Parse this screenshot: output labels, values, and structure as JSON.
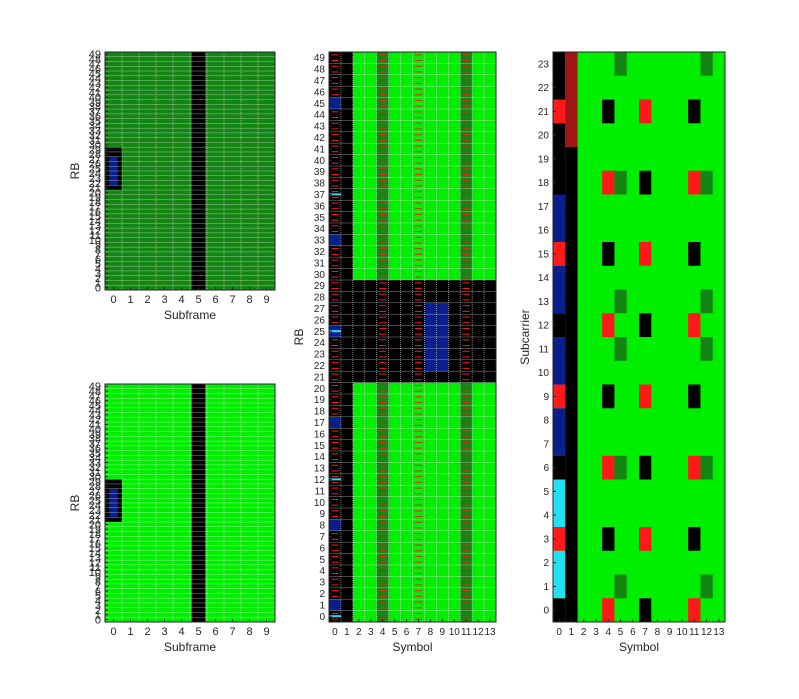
{
  "figure": {
    "background": "#ffffff"
  },
  "palette": {
    "green": "#00ee00",
    "dark_green": "#138513",
    "black": "#000000",
    "red": "#ff1a1a",
    "dark_red": "#a01515",
    "blue": "#0b1f8c",
    "cyan": "#22e0f2",
    "grid": "#ffffff",
    "text": "#262626"
  },
  "chart_data": [
    {
      "id": "subframe-map-1",
      "type": "heatmap",
      "xlabel": "Subframe",
      "ylabel": "RB",
      "x_ticks": [
        "0",
        "1",
        "2",
        "3",
        "4",
        "5",
        "6",
        "7",
        "8",
        "9"
      ],
      "y_ticks": [
        "0",
        "1",
        "2",
        "3",
        "4",
        "5",
        "6",
        "7",
        "8",
        "9",
        "10",
        "11",
        "12",
        "13",
        "14",
        "15",
        "16",
        "17",
        "18",
        "19",
        "20",
        "21",
        "22",
        "23",
        "24",
        "25",
        "26",
        "27",
        "28",
        "29",
        "30",
        "31",
        "32",
        "33",
        "34",
        "35",
        "36",
        "37",
        "38",
        "39",
        "40",
        "41",
        "42",
        "43",
        "44",
        "45",
        "46",
        "47",
        "48",
        "49"
      ],
      "xlim": [
        -0.5,
        9.5
      ],
      "ylim": [
        -0.5,
        49.5
      ],
      "grid": true,
      "base_fill": "dark_green",
      "regions": [
        {
          "x": [
            4.6,
            5.4
          ],
          "y": [
            -0.5,
            49.5
          ],
          "fill": "black"
        },
        {
          "x": [
            -0.5,
            0.5
          ],
          "y": [
            20.5,
            29.5
          ],
          "fill": "black"
        },
        {
          "x": [
            -0.25,
            0.25
          ],
          "y": [
            21.5,
            27.5
          ],
          "fill": "blue"
        }
      ]
    },
    {
      "id": "subframe-map-2",
      "type": "heatmap",
      "xlabel": "Subframe",
      "ylabel": "RB",
      "x_ticks": [
        "0",
        "1",
        "2",
        "3",
        "4",
        "5",
        "6",
        "7",
        "8",
        "9"
      ],
      "y_ticks": [
        "0",
        "1",
        "2",
        "3",
        "4",
        "5",
        "6",
        "7",
        "8",
        "9",
        "10",
        "11",
        "12",
        "13",
        "14",
        "15",
        "16",
        "17",
        "18",
        "19",
        "20",
        "21",
        "22",
        "23",
        "24",
        "25",
        "26",
        "27",
        "28",
        "29",
        "30",
        "31",
        "32",
        "33",
        "34",
        "35",
        "36",
        "37",
        "38",
        "39",
        "40",
        "41",
        "42",
        "43",
        "44",
        "45",
        "46",
        "47",
        "48",
        "49"
      ],
      "xlim": [
        -0.5,
        9.5
      ],
      "ylim": [
        -0.5,
        49.5
      ],
      "grid": true,
      "base_fill": "green",
      "regions": [
        {
          "x": [
            4.6,
            5.4
          ],
          "y": [
            -0.5,
            49.5
          ],
          "fill": "black"
        },
        {
          "x": [
            -0.5,
            0.5
          ],
          "y": [
            20.5,
            29.5
          ],
          "fill": "black"
        },
        {
          "x": [
            -0.25,
            0.25
          ],
          "y": [
            21.5,
            27.5
          ],
          "fill": "blue"
        }
      ]
    },
    {
      "id": "rb-symbol-map",
      "type": "heatmap",
      "xlabel": "Symbol",
      "ylabel": "RB",
      "x_ticks": [
        "0",
        "1",
        "2",
        "3",
        "4",
        "5",
        "6",
        "7",
        "8",
        "9",
        "10",
        "11",
        "12",
        "13"
      ],
      "y_ticks": [
        "0",
        "1",
        "2",
        "3",
        "4",
        "5",
        "6",
        "7",
        "8",
        "9",
        "10",
        "11",
        "12",
        "13",
        "14",
        "15",
        "16",
        "17",
        "18",
        "19",
        "20",
        "21",
        "22",
        "23",
        "24",
        "25",
        "26",
        "27",
        "28",
        "29",
        "30",
        "31",
        "32",
        "33",
        "34",
        "35",
        "36",
        "37",
        "38",
        "39",
        "40",
        "41",
        "42",
        "43",
        "44",
        "45",
        "46",
        "47",
        "48",
        "49"
      ],
      "xlim": [
        -0.5,
        13.5
      ],
      "ylim": [
        -0.5,
        49.5
      ],
      "grid": true,
      "base_fill": "green",
      "regions": [
        {
          "x": [
            -0.5,
            1.5
          ],
          "y": [
            -0.5,
            49.5
          ],
          "fill": "black"
        },
        {
          "x": [
            -0.5,
            13.5
          ],
          "y": [
            20.5,
            29.5
          ],
          "fill": "black"
        },
        {
          "x": [
            7.5,
            9.5
          ],
          "y": [
            21.5,
            27.5
          ],
          "fill": "blue"
        },
        {
          "x": [
            3.5,
            4.5
          ],
          "y": [
            -0.5,
            20.5
          ],
          "fill": "dark_green"
        },
        {
          "x": [
            3.5,
            4.5
          ],
          "y": [
            29.5,
            49.5
          ],
          "fill": "dark_green"
        },
        {
          "x": [
            10.5,
            11.5
          ],
          "y": [
            -0.5,
            20.5
          ],
          "fill": "dark_green"
        },
        {
          "x": [
            10.5,
            11.5
          ],
          "y": [
            29.5,
            49.5
          ],
          "fill": "dark_green"
        }
      ],
      "hatched_columns": [
        0,
        4,
        7,
        11
      ],
      "blue_rows_col0": [
        1,
        8,
        17,
        25,
        33,
        45
      ],
      "cyan_rows_col0": [
        0,
        12,
        25,
        37
      ]
    },
    {
      "id": "subcarrier-symbol-map",
      "type": "heatmap",
      "xlabel": "Symbol",
      "ylabel": "Subcarrier",
      "x_ticks": [
        "0",
        "1",
        "2",
        "3",
        "4",
        "5",
        "6",
        "7",
        "8",
        "9",
        "10",
        "11",
        "12",
        "13"
      ],
      "y_ticks": [
        "0",
        "1",
        "2",
        "3",
        "4",
        "5",
        "6",
        "7",
        "8",
        "9",
        "10",
        "11",
        "12",
        "13",
        "14",
        "15",
        "16",
        "17",
        "18",
        "19",
        "20",
        "21",
        "22",
        "23"
      ],
      "xlim": [
        -0.5,
        13.5
      ],
      "ylim": [
        0,
        24
      ],
      "grid": false,
      "base_fill": "green",
      "cells": [
        {
          "x": 0,
          "y0": 0,
          "y1": 1,
          "fill": "black"
        },
        {
          "x": 0,
          "y0": 1,
          "y1": 3,
          "fill": "cyan"
        },
        {
          "x": 0,
          "y0": 3,
          "y1": 4,
          "fill": "red"
        },
        {
          "x": 0,
          "y0": 4,
          "y1": 6,
          "fill": "cyan"
        },
        {
          "x": 0,
          "y0": 6,
          "y1": 7,
          "fill": "black"
        },
        {
          "x": 0,
          "y0": 7,
          "y1": 9,
          "fill": "blue"
        },
        {
          "x": 0,
          "y0": 9,
          "y1": 10,
          "fill": "red"
        },
        {
          "x": 0,
          "y0": 10,
          "y1": 12,
          "fill": "blue"
        },
        {
          "x": 0,
          "y0": 12,
          "y1": 13,
          "fill": "black"
        },
        {
          "x": 0,
          "y0": 13,
          "y1": 15,
          "fill": "blue"
        },
        {
          "x": 0,
          "y0": 15,
          "y1": 16,
          "fill": "red"
        },
        {
          "x": 0,
          "y0": 16,
          "y1": 18,
          "fill": "blue"
        },
        {
          "x": 0,
          "y0": 18,
          "y1": 21,
          "fill": "black"
        },
        {
          "x": 0,
          "y0": 21,
          "y1": 22,
          "fill": "red"
        },
        {
          "x": 0,
          "y0": 22,
          "y1": 24,
          "fill": "black"
        },
        {
          "x": 1,
          "y0": 0,
          "y1": 20,
          "fill": "black"
        },
        {
          "x": 1,
          "y0": 20,
          "y1": 24,
          "fill": "dark_red"
        },
        {
          "x": 4,
          "y0": 0,
          "y1": 1,
          "fill": "red"
        },
        {
          "x": 7,
          "y0": 0,
          "y1": 1,
          "fill": "black"
        },
        {
          "x": 11,
          "y0": 0,
          "y1": 1,
          "fill": "red"
        },
        {
          "x": 5,
          "y0": 1,
          "y1": 2,
          "fill": "dark_green"
        },
        {
          "x": 12,
          "y0": 1,
          "y1": 2,
          "fill": "dark_green"
        },
        {
          "x": 4,
          "y0": 3,
          "y1": 4,
          "fill": "black"
        },
        {
          "x": 7,
          "y0": 3,
          "y1": 4,
          "fill": "red"
        },
        {
          "x": 11,
          "y0": 3,
          "y1": 4,
          "fill": "black"
        },
        {
          "x": 4,
          "y0": 6,
          "y1": 7,
          "fill": "red"
        },
        {
          "x": 5,
          "y0": 6,
          "y1": 7,
          "fill": "dark_green"
        },
        {
          "x": 7,
          "y0": 6,
          "y1": 7,
          "fill": "black"
        },
        {
          "x": 11,
          "y0": 6,
          "y1": 7,
          "fill": "red"
        },
        {
          "x": 12,
          "y0": 6,
          "y1": 7,
          "fill": "dark_green"
        },
        {
          "x": 4,
          "y0": 9,
          "y1": 10,
          "fill": "black"
        },
        {
          "x": 7,
          "y0": 9,
          "y1": 10,
          "fill": "red"
        },
        {
          "x": 11,
          "y0": 9,
          "y1": 10,
          "fill": "black"
        },
        {
          "x": 5,
          "y0": 11,
          "y1": 12,
          "fill": "dark_green"
        },
        {
          "x": 12,
          "y0": 11,
          "y1": 12,
          "fill": "dark_green"
        },
        {
          "x": 4,
          "y0": 12,
          "y1": 13,
          "fill": "red"
        },
        {
          "x": 7,
          "y0": 12,
          "y1": 13,
          "fill": "black"
        },
        {
          "x": 11,
          "y0": 12,
          "y1": 13,
          "fill": "red"
        },
        {
          "x": 5,
          "y0": 13,
          "y1": 14,
          "fill": "dark_green"
        },
        {
          "x": 12,
          "y0": 13,
          "y1": 14,
          "fill": "dark_green"
        },
        {
          "x": 4,
          "y0": 15,
          "y1": 16,
          "fill": "black"
        },
        {
          "x": 7,
          "y0": 15,
          "y1": 16,
          "fill": "red"
        },
        {
          "x": 11,
          "y0": 15,
          "y1": 16,
          "fill": "black"
        },
        {
          "x": 4,
          "y0": 18,
          "y1": 19,
          "fill": "red"
        },
        {
          "x": 5,
          "y0": 18,
          "y1": 19,
          "fill": "dark_green"
        },
        {
          "x": 7,
          "y0": 18,
          "y1": 19,
          "fill": "black"
        },
        {
          "x": 11,
          "y0": 18,
          "y1": 19,
          "fill": "red"
        },
        {
          "x": 12,
          "y0": 18,
          "y1": 19,
          "fill": "dark_green"
        },
        {
          "x": 4,
          "y0": 21,
          "y1": 22,
          "fill": "black"
        },
        {
          "x": 7,
          "y0": 21,
          "y1": 22,
          "fill": "red"
        },
        {
          "x": 11,
          "y0": 21,
          "y1": 22,
          "fill": "black"
        },
        {
          "x": 5,
          "y0": 23,
          "y1": 24,
          "fill": "dark_green"
        },
        {
          "x": 12,
          "y0": 23,
          "y1": 24,
          "fill": "dark_green"
        }
      ],
      "ytick_positions": "centered"
    }
  ]
}
